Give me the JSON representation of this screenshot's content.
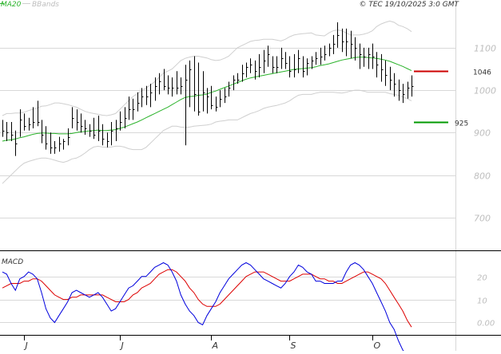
{
  "credit": "© TEC 19/10/2025 3:0 GMT",
  "legend": {
    "ma_label": "MA20",
    "bbands_label": "BBands",
    "ma_color": "#2bb32b",
    "bbands_color": "#cfcfcf"
  },
  "levels": {
    "resistance": {
      "value": 1046,
      "label": "1046",
      "color": "#cc0000"
    },
    "support": {
      "value": 925,
      "label": "925",
      "color": "#009900"
    }
  },
  "macd_panel": {
    "label": "MACD",
    "ticks": [
      "20",
      "10",
      "0.00"
    ],
    "macd_color": "#0000dd",
    "signal_color": "#dd0000"
  },
  "chart_data": {
    "type": "line",
    "price": {
      "ylim": [
        630,
        1190
      ],
      "yticks": [
        700,
        800,
        900,
        1000,
        1100
      ],
      "ytick_labels": [
        "700",
        "800",
        "900",
        "1000",
        "1100"
      ],
      "high": [
        930,
        925,
        925,
        905,
        955,
        945,
        935,
        960,
        975,
        930,
        915,
        900,
        880,
        890,
        885,
        910,
        960,
        955,
        945,
        930,
        920,
        935,
        940,
        920,
        900,
        925,
        930,
        950,
        960,
        985,
        980,
        995,
        1005,
        1010,
        1015,
        1030,
        1040,
        1050,
        1035,
        1030,
        1045,
        1030,
        1060,
        1070,
        1080,
        1065,
        1045,
        1005,
        1010,
        985,
        1000,
        1005,
        1020,
        1035,
        1040,
        1060,
        1065,
        1075,
        1070,
        1085,
        1095,
        1105,
        1080,
        1080,
        1100,
        1090,
        1080,
        1085,
        1095,
        1080,
        1075,
        1080,
        1090,
        1100,
        1105,
        1110,
        1130,
        1160,
        1145,
        1145,
        1140,
        1125,
        1110,
        1100,
        1100,
        1110,
        1090,
        1085,
        1070,
        1055,
        1040,
        1025,
        1015,
        1020,
        1035
      ],
      "low": [
        890,
        880,
        880,
        845,
        890,
        905,
        905,
        910,
        915,
        875,
        860,
        850,
        850,
        855,
        860,
        870,
        910,
        905,
        900,
        895,
        890,
        885,
        880,
        870,
        865,
        870,
        880,
        905,
        910,
        930,
        930,
        950,
        960,
        965,
        960,
        975,
        990,
        1000,
        990,
        985,
        990,
        990,
        870,
        960,
        950,
        940,
        950,
        945,
        955,
        950,
        960,
        970,
        985,
        1000,
        1015,
        1020,
        1030,
        1040,
        1025,
        1030,
        1040,
        1055,
        1040,
        1040,
        1050,
        1050,
        1030,
        1030,
        1040,
        1030,
        1035,
        1050,
        1060,
        1060,
        1070,
        1080,
        1085,
        1100,
        1090,
        1080,
        1075,
        1070,
        1050,
        1055,
        1050,
        1050,
        1030,
        1020,
        1010,
        1000,
        985,
        975,
        970,
        980,
        985
      ],
      "close": [
        905,
        900,
        895,
        875,
        930,
        915,
        920,
        925,
        925,
        895,
        875,
        865,
        865,
        875,
        880,
        890,
        935,
        925,
        915,
        910,
        905,
        895,
        905,
        885,
        880,
        905,
        910,
        925,
        935,
        955,
        955,
        970,
        985,
        985,
        995,
        1010,
        1020,
        1010,
        1005,
        1005,
        1005,
        1010,
        1025,
        1050,
        990,
        950,
        995,
        985,
        965,
        960,
        980,
        985,
        1005,
        1025,
        1025,
        1040,
        1055,
        1060,
        1045,
        1055,
        1070,
        1085,
        1055,
        1055,
        1075,
        1065,
        1045,
        1050,
        1075,
        1045,
        1065,
        1070,
        1075,
        1080,
        1085,
        1100,
        1110,
        1130,
        1115,
        1115,
        1110,
        1100,
        1085,
        1080,
        1085,
        1080,
        1060,
        1050,
        1035,
        1025,
        1015,
        1000,
        990,
        1005,
        1010
      ],
      "ma20": [
        880,
        882,
        883,
        885,
        888,
        890,
        893,
        896,
        898,
        899,
        899,
        898,
        898,
        897,
        897,
        897,
        898,
        900,
        902,
        903,
        904,
        905,
        906,
        905,
        905,
        906,
        907,
        910,
        913,
        917,
        921,
        925,
        930,
        935,
        940,
        945,
        950,
        955,
        960,
        966,
        972,
        978,
        983,
        985,
        986,
        988,
        989,
        991,
        995,
        998,
        1002,
        1006,
        1010,
        1014,
        1018,
        1022,
        1026,
        1029,
        1031,
        1033,
        1035,
        1037,
        1039,
        1041,
        1043,
        1045,
        1047,
        1049,
        1050,
        1051,
        1052,
        1053,
        1055,
        1058,
        1060,
        1062,
        1065,
        1068,
        1071,
        1073,
        1075,
        1077,
        1078,
        1078,
        1077,
        1076,
        1075,
        1073,
        1071,
        1068,
        1064,
        1060,
        1056,
        1051,
        1046
      ],
      "bb_upper": [
        940,
        945,
        945,
        946,
        946,
        948,
        952,
        955,
        958,
        962,
        963,
        966,
        970,
        970,
        968,
        966,
        963,
        960,
        955,
        950,
        947,
        945,
        943,
        941,
        940,
        942,
        945,
        955,
        965,
        975,
        985,
        992,
        998,
        1005,
        1012,
        1020,
        1030,
        1040,
        1045,
        1050,
        1060,
        1070,
        1075,
        1078,
        1080,
        1080,
        1078,
        1076,
        1072,
        1070,
        1071,
        1075,
        1080,
        1090,
        1100,
        1105,
        1110,
        1115,
        1117,
        1118,
        1120,
        1120,
        1120,
        1118,
        1116,
        1120,
        1126,
        1130,
        1132,
        1133,
        1134,
        1135,
        1130,
        1129,
        1128,
        1135,
        1140,
        1142,
        1140,
        1135,
        1130,
        1130,
        1130,
        1132,
        1135,
        1140,
        1150,
        1156,
        1160,
        1163,
        1160,
        1153,
        1150,
        1145,
        1138
      ],
      "bb_lower": [
        780,
        790,
        800,
        810,
        820,
        828,
        832,
        835,
        838,
        840,
        840,
        838,
        835,
        832,
        830,
        833,
        838,
        840,
        845,
        852,
        860,
        866,
        868,
        866,
        865,
        866,
        868,
        868,
        866,
        862,
        860,
        860,
        860,
        865,
        875,
        885,
        895,
        905,
        910,
        915,
        915,
        913,
        912,
        913,
        915,
        916,
        917,
        918,
        920,
        925,
        927,
        928,
        930,
        930,
        930,
        935,
        940,
        945,
        948,
        952,
        957,
        960,
        962,
        964,
        967,
        970,
        975,
        982,
        988,
        990,
        990,
        990,
        993,
        995,
        995,
        995,
        995,
        994,
        993,
        995,
        998,
        1000,
        1000,
        998,
        995,
        995,
        995,
        995,
        995,
        992,
        990,
        988,
        984,
        980,
        975
      ]
    },
    "macd": {
      "ylim": [
        -4,
        30
      ],
      "yticks": [
        20,
        10,
        0
      ],
      "macd": [
        22,
        21,
        17,
        14,
        19,
        20,
        22,
        21,
        19,
        13,
        6,
        2,
        0,
        3,
        6,
        9,
        13,
        14,
        13,
        12,
        11,
        12,
        13,
        11,
        8,
        5,
        6,
        9,
        12,
        15,
        16,
        18,
        20,
        20,
        22,
        24,
        25,
        26,
        25,
        22,
        18,
        12,
        8,
        5,
        3,
        0,
        -1,
        3,
        6,
        9,
        13,
        16,
        19,
        21,
        23,
        25,
        26,
        25,
        23,
        21,
        19,
        18,
        17,
        16,
        15,
        17,
        20,
        22,
        25,
        24,
        22,
        21,
        18,
        18,
        17,
        17,
        17,
        18,
        18,
        22,
        25,
        26,
        25,
        23,
        20,
        17,
        13,
        9,
        5,
        0,
        -3,
        -8,
        -12,
        -14,
        -15
      ],
      "signal": [
        15,
        16,
        17,
        17,
        17,
        18,
        18,
        19,
        19,
        18,
        16,
        14,
        12,
        11,
        10,
        10,
        11,
        11,
        12,
        12,
        12,
        12,
        12,
        12,
        11,
        10,
        9,
        9,
        9,
        10,
        12,
        13,
        15,
        16,
        17,
        19,
        21,
        22,
        23,
        23,
        22,
        20,
        18,
        15,
        13,
        10,
        8,
        7,
        7,
        7,
        8,
        10,
        12,
        14,
        16,
        18,
        20,
        21,
        22,
        22,
        22,
        21,
        20,
        19,
        18,
        18,
        18,
        19,
        20,
        21,
        21,
        21,
        20,
        19,
        19,
        18,
        18,
        17,
        17,
        18,
        19,
        20,
        21,
        22,
        22,
        21,
        20,
        19,
        17,
        14,
        11,
        8,
        5,
        1,
        -2
      ]
    },
    "x_labels": [
      {
        "index": 5,
        "label": "J"
      },
      {
        "index": 27,
        "label": "J"
      },
      {
        "index": 48,
        "label": "A"
      },
      {
        "index": 66,
        "label": "S"
      },
      {
        "index": 85,
        "label": "O"
      }
    ]
  }
}
